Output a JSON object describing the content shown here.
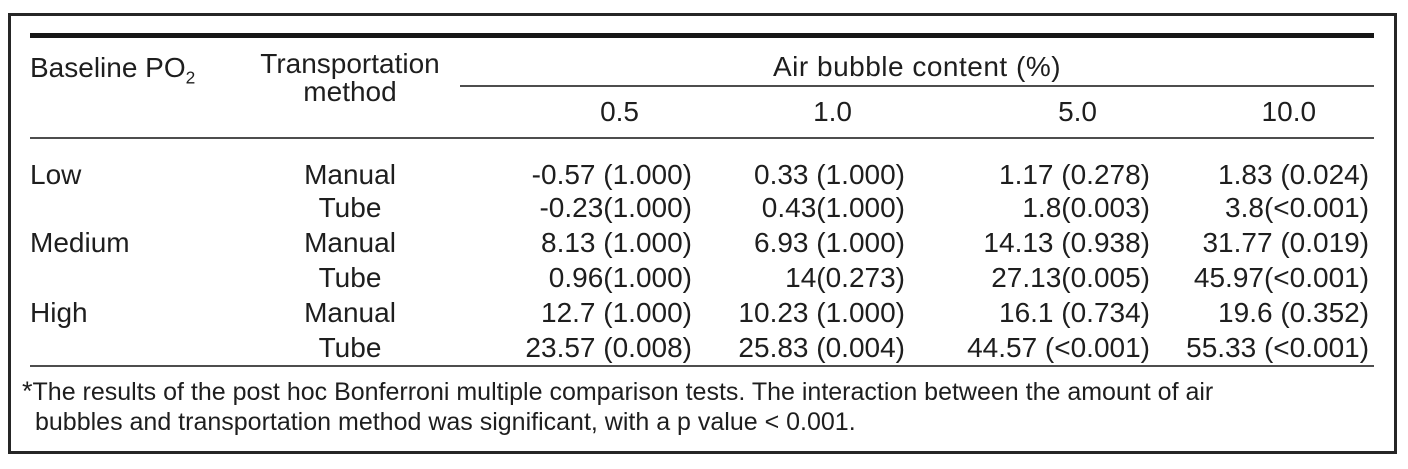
{
  "table": {
    "header": {
      "baseline_label": "Baseline PO",
      "baseline_sub": "2",
      "method_line1": "Transportation",
      "method_line2": "method",
      "span_label": "Air bubble content (%)",
      "columns": [
        "0.5",
        "1.0",
        "5.0",
        "10.0"
      ]
    },
    "rows": [
      {
        "baseline": "Low",
        "method": "Manual",
        "values": [
          "-0.57 (1.000)",
          "0.33 (1.000)",
          "1.17 (0.278)",
          "1.83 (0.024)"
        ]
      },
      {
        "baseline": "",
        "method": "Tube",
        "values": [
          "-0.23(1.000)",
          "0.43(1.000)",
          "1.8(0.003)",
          "3.8(<0.001)"
        ]
      },
      {
        "baseline": "Medium",
        "method": "Manual",
        "values": [
          "8.13 (1.000)",
          "6.93 (1.000)",
          "14.13 (0.938)",
          "31.77 (0.019)"
        ]
      },
      {
        "baseline": "",
        "method": "Tube",
        "values": [
          "0.96(1.000)",
          "14(0.273)",
          "27.13(0.005)",
          "45.97(<0.001)"
        ]
      },
      {
        "baseline": "High",
        "method": "Manual",
        "values": [
          "12.7 (1.000)",
          "10.23 (1.000)",
          "16.1 (0.734)",
          "19.6 (0.352)"
        ]
      },
      {
        "baseline": "",
        "method": "Tube",
        "values": [
          "23.57 (0.008)",
          "25.83 (0.004)",
          "44.57 (<0.001)",
          "55.33 (<0.001)"
        ]
      }
    ],
    "footnote": {
      "marker": "*",
      "line1": "The results of the post hoc Bonferroni multiple comparison tests. The interaction between the amount of air",
      "line2": "bubbles and transportation method was significant, with a p value < 0.001.",
      "full_text": "*The results of the post hoc Bonferroni multiple comparison tests. The interaction between the amount of air bubbles and transportation method was significant, with a p value < 0.001."
    }
  },
  "colors": {
    "text": "#1e1e1e",
    "frame_border": "#262626",
    "rule_thick": "#161616",
    "rule_thin": "#4d4d4d",
    "background": "#ffffff"
  }
}
